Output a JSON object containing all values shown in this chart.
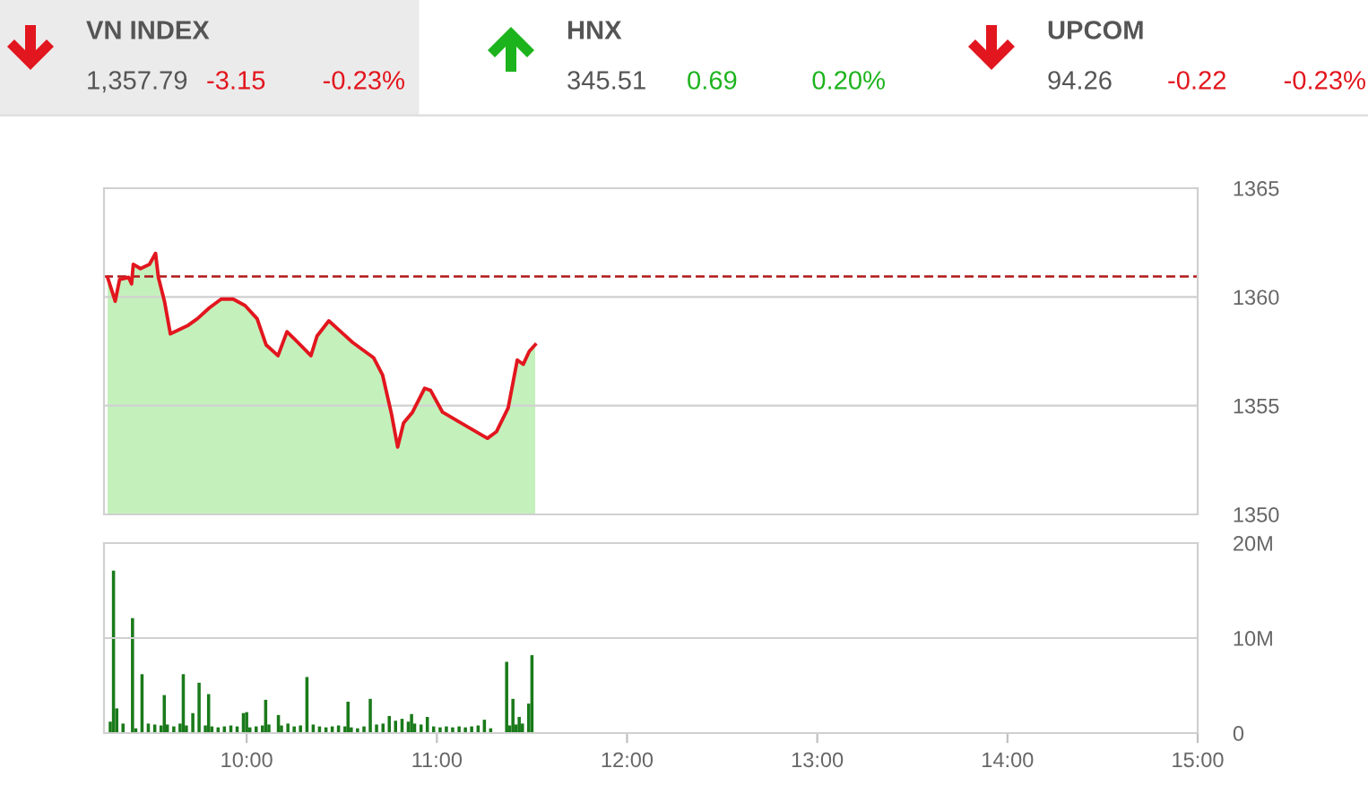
{
  "chart_data": [
    {
      "type": "other",
      "categories": [
        "VN INDEX",
        "HNX",
        "UPCOM"
      ],
      "annotations": [
        "1,357.79",
        "-3.15",
        "-0.23%",
        "345.51",
        "0.69",
        "0.20%",
        "94.26",
        "-0.22",
        "-0.23%"
      ],
      "colors": [
        "#e2161e",
        "#1db31d",
        "#e2161e"
      ]
    },
    {
      "type": "area",
      "tick_labels": "y",
      "grid": "y",
      "xlim": [
        9.25,
        15
      ],
      "ylim": [
        1350,
        1365
      ],
      "yticks": [
        1350,
        1355,
        1360,
        1365
      ],
      "ref_lines": [
        {
          "axis": "y",
          "value": 1360.94,
          "color": "#b01818",
          "line_style": "dashed"
        }
      ],
      "series": [
        {
          "type": "area",
          "color": "#c4f0bc",
          "x": [
            9.269,
            9.309,
            9.332,
            9.379,
            9.395,
            9.404,
            9.442,
            9.489,
            9.521,
            9.536,
            9.568,
            9.599,
            9.646,
            9.693,
            9.741,
            9.804,
            9.866,
            9.929,
            9.992,
            10.055,
            10.102,
            10.165,
            10.212,
            10.259,
            10.338,
            10.37,
            10.432,
            10.495,
            10.558,
            10.621,
            10.668,
            10.715,
            10.762,
            10.794,
            10.825,
            10.872,
            10.936,
            10.967,
            11.03,
            11.108,
            11.187,
            11.266,
            11.313,
            11.375,
            11.423,
            11.454,
            11.486,
            11.517
          ],
          "values": [
            1360.9,
            1359.8,
            1360.8,
            1360.9,
            1360.6,
            1361.5,
            1361.3,
            1361.5,
            1362.0,
            1360.9,
            1359.8,
            1358.3,
            1358.5,
            1358.7,
            1359.0,
            1359.5,
            1359.9,
            1359.9,
            1359.6,
            1359.0,
            1357.8,
            1357.3,
            1358.4,
            1358.0,
            1357.3,
            1358.2,
            1358.9,
            1358.4,
            1357.9,
            1357.5,
            1357.2,
            1356.4,
            1354.6,
            1353.1,
            1354.2,
            1354.7,
            1355.8,
            1355.7,
            1354.7,
            1354.3,
            1353.9,
            1353.5,
            1353.8,
            1354.9,
            1357.1,
            1356.9,
            1357.5,
            1357.8
          ]
        },
        {
          "type": "line",
          "color": "#e2161e",
          "x": [
            9.269,
            9.309,
            9.332,
            9.379,
            9.395,
            9.404,
            9.442,
            9.489,
            9.521,
            9.536,
            9.568,
            9.599,
            9.646,
            9.693,
            9.741,
            9.804,
            9.866,
            9.929,
            9.992,
            10.055,
            10.102,
            10.165,
            10.212,
            10.259,
            10.338,
            10.37,
            10.432,
            10.495,
            10.558,
            10.621,
            10.668,
            10.715,
            10.762,
            10.794,
            10.825,
            10.872,
            10.936,
            10.967,
            11.03,
            11.108,
            11.187,
            11.266,
            11.313,
            11.375,
            11.423,
            11.454,
            11.486,
            11.517
          ],
          "values": [
            1360.9,
            1359.8,
            1360.8,
            1360.9,
            1360.6,
            1361.5,
            1361.3,
            1361.5,
            1362.0,
            1360.9,
            1359.8,
            1358.3,
            1358.5,
            1358.7,
            1359.0,
            1359.5,
            1359.9,
            1359.9,
            1359.6,
            1359.0,
            1357.8,
            1357.3,
            1358.4,
            1358.0,
            1357.3,
            1358.2,
            1358.9,
            1358.4,
            1357.9,
            1357.5,
            1357.2,
            1356.4,
            1354.6,
            1353.1,
            1354.2,
            1354.7,
            1355.8,
            1355.7,
            1354.7,
            1354.3,
            1353.9,
            1353.5,
            1353.8,
            1354.9,
            1357.1,
            1356.9,
            1357.5,
            1357.8
          ]
        }
      ]
    },
    {
      "type": "bar",
      "grid": "y",
      "xlim": [
        9.25,
        15
      ],
      "xticks": [
        {
          "value": 10,
          "label": "10:00"
        },
        {
          "value": 11,
          "label": "11:00"
        },
        {
          "value": 12,
          "label": "12:00"
        },
        {
          "value": 13,
          "label": "13:00"
        },
        {
          "value": 14,
          "label": "14:00"
        },
        {
          "value": 15,
          "label": "15:00"
        }
      ],
      "ylim": [
        0,
        20
      ],
      "yticks": [
        0,
        {
          "value": 10,
          "label": "10M"
        },
        {
          "value": 20,
          "label": "20M"
        }
      ],
      "x": [
        9.283,
        9.3,
        9.317,
        9.35,
        9.4,
        9.417,
        9.45,
        9.483,
        9.517,
        9.55,
        9.567,
        9.583,
        9.617,
        9.65,
        9.667,
        9.683,
        9.717,
        9.75,
        9.783,
        9.8,
        9.817,
        9.85,
        9.883,
        9.917,
        9.95,
        9.983,
        10.0,
        10.017,
        10.05,
        10.083,
        10.1,
        10.117,
        10.167,
        10.183,
        10.217,
        10.25,
        10.283,
        10.317,
        10.35,
        10.383,
        10.417,
        10.45,
        10.483,
        10.517,
        10.533,
        10.55,
        10.583,
        10.617,
        10.65,
        10.683,
        10.717,
        10.75,
        10.783,
        10.817,
        10.85,
        10.867,
        10.883,
        10.917,
        10.95,
        10.983,
        11.017,
        11.05,
        11.083,
        11.117,
        11.15,
        11.183,
        11.217,
        11.25,
        11.283,
        11.367,
        11.383,
        11.4,
        11.417,
        11.433,
        11.45,
        11.483,
        11.5
      ],
      "values": [
        1.2,
        17.1,
        2.6,
        1.0,
        12.1,
        0.5,
        6.2,
        1.0,
        0.9,
        0.8,
        4.0,
        0.9,
        0.7,
        1.0,
        6.2,
        0.8,
        2.1,
        5.3,
        0.8,
        4.1,
        0.7,
        0.6,
        0.7,
        0.8,
        0.7,
        2.1,
        2.2,
        0.6,
        0.7,
        0.8,
        3.5,
        0.9,
        1.9,
        0.8,
        1.0,
        0.7,
        0.8,
        5.9,
        0.9,
        0.7,
        0.6,
        0.7,
        0.8,
        0.7,
        3.3,
        0.6,
        0.5,
        0.7,
        3.6,
        0.9,
        1.0,
        1.8,
        1.3,
        1.5,
        1.2,
        2.0,
        1.0,
        0.9,
        1.7,
        0.7,
        0.6,
        0.7,
        0.6,
        0.7,
        0.6,
        0.7,
        0.8,
        1.4,
        0.5,
        7.5,
        0.8,
        3.6,
        0.9,
        1.7,
        1.0,
        3.1,
        8.2
      ],
      "color": "#1a7a1a"
    }
  ]
}
